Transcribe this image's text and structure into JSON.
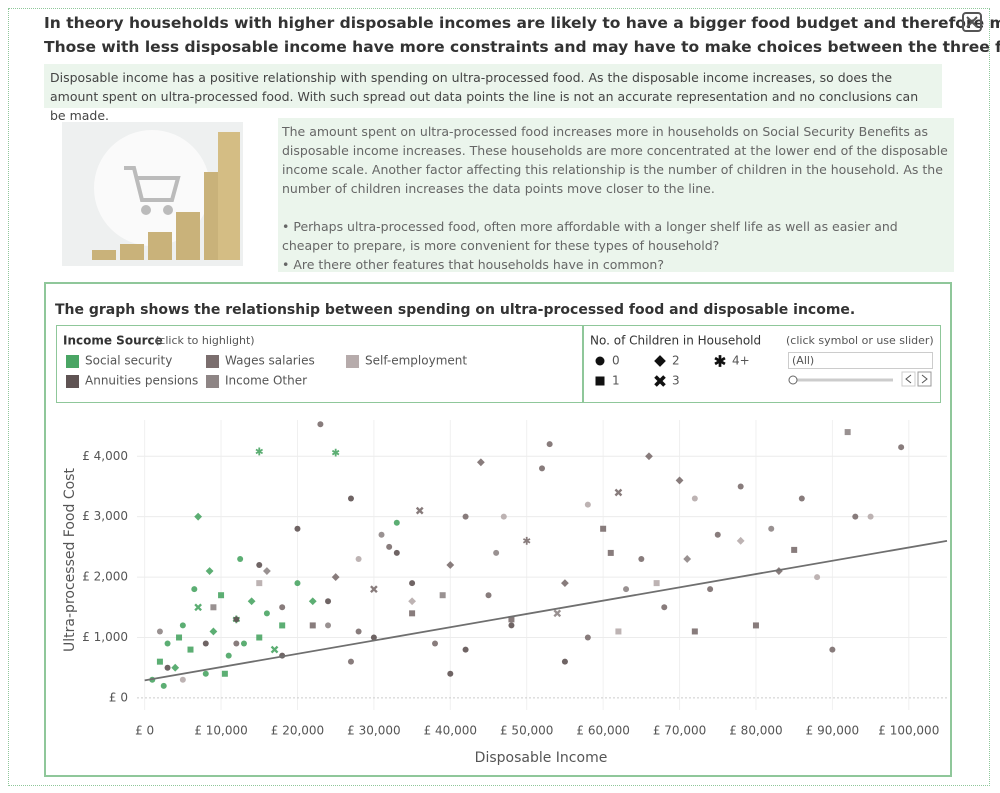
{
  "header": {
    "title_line1": "In theory households with higher disposable incomes are likely to have a bigger food budget and therefore more choice.",
    "title_line2": "Those with less disposable income have more constraints and may have to make choices between the three food groups."
  },
  "summary": "Disposable income has a positive relationship with spending on ultra-processed food. As the disposable income increases, so does the amount spent on ultra-processed food. With such spread out data points the line is not an accurate representation and no conclusions can be made.",
  "details": {
    "paragraph": "The amount spent on ultra-processed food increases more in households on Social Security Benefits as disposable income increases. These households are more concentrated at the lower end of the disposable income scale. Another factor affecting this relationship is the number of children in the household.  As the number of children increases the data points move closer to the line.",
    "bullets": [
      "• Perhaps ultra-processed food, often more affordable with a longer shelf life as well as easier and cheaper to prepare, is more convenient for these types of  household?",
      "•  Are there other features that households have in common?"
    ]
  },
  "chart_data": {
    "type": "scatter",
    "title": "The graph shows the relationship between spending on ultra-processed food and disposable income.",
    "legend_title": "Income Source",
    "legend_hint": "(click to highlight)",
    "children_title": "No. of Children in Household",
    "children_hint": "(click symbol or use slider)",
    "children_filter": "(All)",
    "children_legend": [
      "0",
      "1",
      "2",
      "3",
      "4+"
    ],
    "x_label": "Disposable Income",
    "y_label": "Ultra-processed Food Cost",
    "xlim": [
      -1000,
      105000
    ],
    "ylim": [
      -200,
      4600
    ],
    "xticks": [
      {
        "value": 0,
        "label": "£ 0"
      },
      {
        "value": 10000,
        "label": "£ 10,000"
      },
      {
        "value": 20000,
        "label": "£ 20,000"
      },
      {
        "value": 30000,
        "label": "£ 30,000"
      },
      {
        "value": 40000,
        "label": "£ 40,000"
      },
      {
        "value": 50000,
        "label": "£ 50,000"
      },
      {
        "value": 60000,
        "label": "£ 60,000"
      },
      {
        "value": 70000,
        "label": "£ 70,000"
      },
      {
        "value": 80000,
        "label": "£ 80,000"
      },
      {
        "value": 90000,
        "label": "£ 90,000"
      },
      {
        "value": 100000,
        "label": "£ 100,000"
      }
    ],
    "yticks": [
      {
        "value": 0,
        "label": "£ 0"
      },
      {
        "value": 1000,
        "label": "£ 1,000"
      },
      {
        "value": 2000,
        "label": "£ 2,000"
      },
      {
        "value": 3000,
        "label": "£ 3,000"
      },
      {
        "value": 4000,
        "label": "£ 4,000"
      }
    ],
    "grid": true,
    "trend_line": {
      "color": "#6f6f6f",
      "x": [
        0,
        105000
      ],
      "values": [
        290,
        2600
      ]
    },
    "series": [
      {
        "name": "Social security",
        "color": "#4aa564",
        "x": [
          1000,
          2000,
          3000,
          4000,
          5000,
          6000,
          7000,
          8000,
          9000,
          10000,
          11000,
          12000,
          13000,
          14000,
          15000,
          16000,
          17000,
          18000,
          20000,
          22000,
          2500,
          4500,
          6500,
          8500,
          10500,
          12500,
          15000,
          25000,
          7000,
          33000
        ],
        "values": [
          300,
          600,
          900,
          500,
          1200,
          800,
          1500,
          400,
          1100,
          1700,
          700,
          1300,
          900,
          1600,
          1000,
          1400,
          800,
          1200,
          1900,
          1600,
          200,
          1000,
          1800,
          2100,
          400,
          2300,
          4080,
          4060,
          3000,
          2900
        ],
        "children": [
          0,
          1,
          0,
          2,
          0,
          1,
          3,
          0,
          2,
          1,
          0,
          4,
          0,
          2,
          1,
          0,
          3,
          1,
          0,
          2,
          0,
          1,
          0,
          2,
          1,
          0,
          4,
          4,
          2,
          0
        ]
      },
      {
        "name": "Wages salaries",
        "color": "#7b6e6e",
        "x": [
          12000,
          18000,
          22000,
          25000,
          28000,
          30000,
          32000,
          35000,
          38000,
          40000,
          42000,
          45000,
          48000,
          50000,
          52000,
          55000,
          58000,
          60000,
          62000,
          65000,
          68000,
          70000,
          72000,
          75000,
          78000,
          80000,
          83000,
          86000,
          90000,
          93000,
          99000,
          23000,
          36000,
          44000,
          53000,
          61000,
          66000,
          74000,
          85000,
          27000
        ],
        "values": [
          900,
          1500,
          1200,
          2000,
          1100,
          1800,
          2500,
          1400,
          900,
          2200,
          3000,
          1700,
          1300,
          2600,
          3800,
          1900,
          1000,
          2800,
          3400,
          2300,
          1500,
          3600,
          1100,
          2700,
          3500,
          1200,
          2100,
          3300,
          800,
          3000,
          4150,
          4530,
          3100,
          3900,
          4200,
          2400,
          4000,
          1800,
          2450,
          600
        ],
        "children": [
          0,
          0,
          1,
          2,
          0,
          3,
          0,
          1,
          0,
          2,
          0,
          0,
          1,
          4,
          0,
          2,
          0,
          1,
          3,
          0,
          0,
          2,
          1,
          0,
          0,
          1,
          2,
          0,
          0,
          0,
          0,
          0,
          3,
          2,
          0,
          1,
          2,
          0,
          1,
          0
        ]
      },
      {
        "name": "Self-employment",
        "color": "#b6abab",
        "x": [
          5000,
          15000,
          28000,
          35000,
          47000,
          58000,
          67000,
          72000,
          78000,
          88000,
          95000,
          62000
        ],
        "values": [
          300,
          1900,
          2300,
          1600,
          3000,
          3200,
          1900,
          3300,
          2600,
          2000,
          3000,
          1100
        ],
        "children": [
          0,
          1,
          0,
          2,
          0,
          0,
          1,
          0,
          2,
          0,
          0,
          1
        ]
      },
      {
        "name": "Annuities pensions",
        "color": "#5f5353",
        "x": [
          3000,
          8000,
          12000,
          18000,
          24000,
          30000,
          35000,
          42000,
          48000,
          55000,
          20000,
          27000,
          33000,
          15000,
          40000
        ],
        "values": [
          500,
          900,
          1300,
          700,
          1600,
          1000,
          1900,
          800,
          1200,
          600,
          2800,
          3300,
          2400,
          2200,
          400
        ],
        "children": [
          0,
          0,
          0,
          0,
          0,
          0,
          0,
          0,
          0,
          0,
          0,
          0,
          0,
          0,
          0
        ]
      },
      {
        "name": "Income Other",
        "color": "#8e8585",
        "x": [
          2000,
          9000,
          16000,
          24000,
          31000,
          39000,
          46000,
          54000,
          63000,
          71000,
          82000,
          92000
        ],
        "values": [
          1100,
          1500,
          2100,
          1200,
          2700,
          1700,
          2400,
          1400,
          1800,
          2300,
          2800,
          4400
        ],
        "children": [
          0,
          1,
          2,
          0,
          0,
          1,
          0,
          3,
          0,
          2,
          0,
          1
        ]
      }
    ]
  }
}
